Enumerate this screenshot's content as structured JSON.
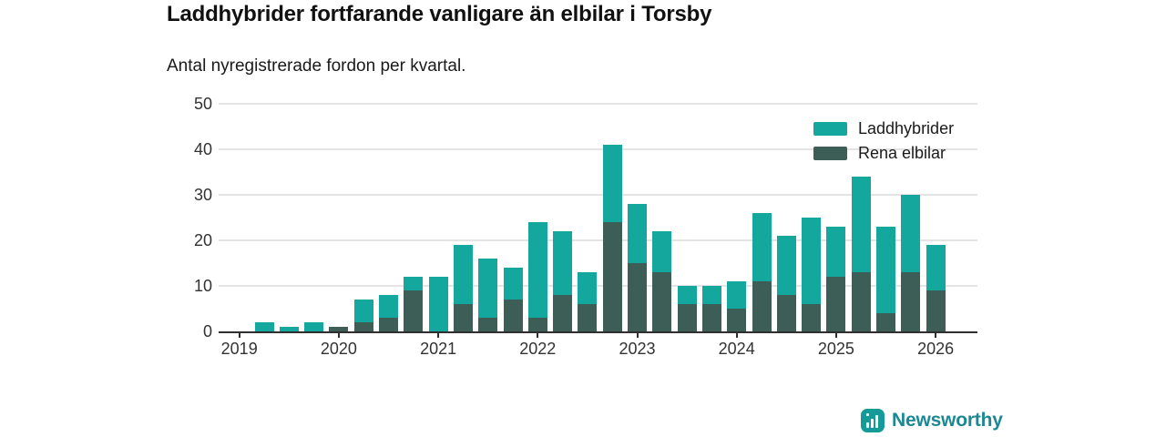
{
  "title": "Laddhybrider fortfarande vanligare än elbilar i Torsby",
  "subtitle": "Antal nyregistrerade fordon per kvartal.",
  "colors": {
    "laddhybrider": "#13a79d",
    "rena_elbilar": "#3d5e57",
    "grid": "#e4e4e4",
    "axis": "#2f2f2f",
    "tick_text": "#333333",
    "logo_icon": "#149a97",
    "logo_text": "#1c8893"
  },
  "legend": {
    "items": [
      {
        "label": "Laddhybrider",
        "color": "#13a79d"
      },
      {
        "label": "Rena elbilar",
        "color": "#3d5e57"
      }
    ]
  },
  "chart_data": {
    "type": "bar",
    "stacked": true,
    "title": "Laddhybrider fortfarande vanligare än elbilar i Torsby",
    "subtitle": "Antal nyregistrerade fordon per kvartal.",
    "x": [
      "2019 Q1",
      "2019 Q2",
      "2019 Q3",
      "2019 Q4",
      "2020 Q1",
      "2020 Q2",
      "2020 Q3",
      "2020 Q4",
      "2021 Q1",
      "2021 Q2",
      "2021 Q3",
      "2021 Q4",
      "2022 Q1",
      "2022 Q2",
      "2022 Q3",
      "2022 Q4",
      "2023 Q1",
      "2023 Q2",
      "2023 Q3",
      "2023 Q4",
      "2024 Q1",
      "2024 Q2",
      "2024 Q3",
      "2024 Q4",
      "2025 Q1",
      "2025 Q2",
      "2025 Q3",
      "2025 Q4",
      "2026 Q1"
    ],
    "series": [
      {
        "name": "Laddhybrider",
        "color": "#13a79d",
        "values": [
          0,
          2,
          1,
          2,
          0,
          5,
          5,
          3,
          12,
          13,
          13,
          7,
          21,
          14,
          7,
          17,
          13,
          9,
          4,
          4,
          6,
          15,
          13,
          19,
          11,
          21,
          19,
          17,
          10
        ]
      },
      {
        "name": "Rena elbilar",
        "color": "#3d5e57",
        "values": [
          0,
          0,
          0,
          0,
          1,
          2,
          3,
          9,
          0,
          6,
          3,
          7,
          3,
          8,
          6,
          24,
          15,
          13,
          6,
          6,
          5,
          11,
          8,
          6,
          12,
          13,
          4,
          13,
          9
        ]
      }
    ],
    "totals": [
      0,
      2,
      1,
      2,
      1,
      7,
      8,
      12,
      12,
      19,
      16,
      14,
      24,
      22,
      13,
      41,
      28,
      22,
      10,
      10,
      11,
      26,
      21,
      25,
      23,
      34,
      23,
      30,
      19
    ],
    "ylim": [
      0,
      50
    ],
    "yticks": [
      0,
      10,
      20,
      30,
      40,
      50
    ],
    "xticks": [
      "2019",
      "2020",
      "2021",
      "2022",
      "2023",
      "2024",
      "2025",
      "2026"
    ],
    "grid": true,
    "legend_position": "top-right"
  },
  "footer": {
    "brand": "Newsworthy"
  }
}
